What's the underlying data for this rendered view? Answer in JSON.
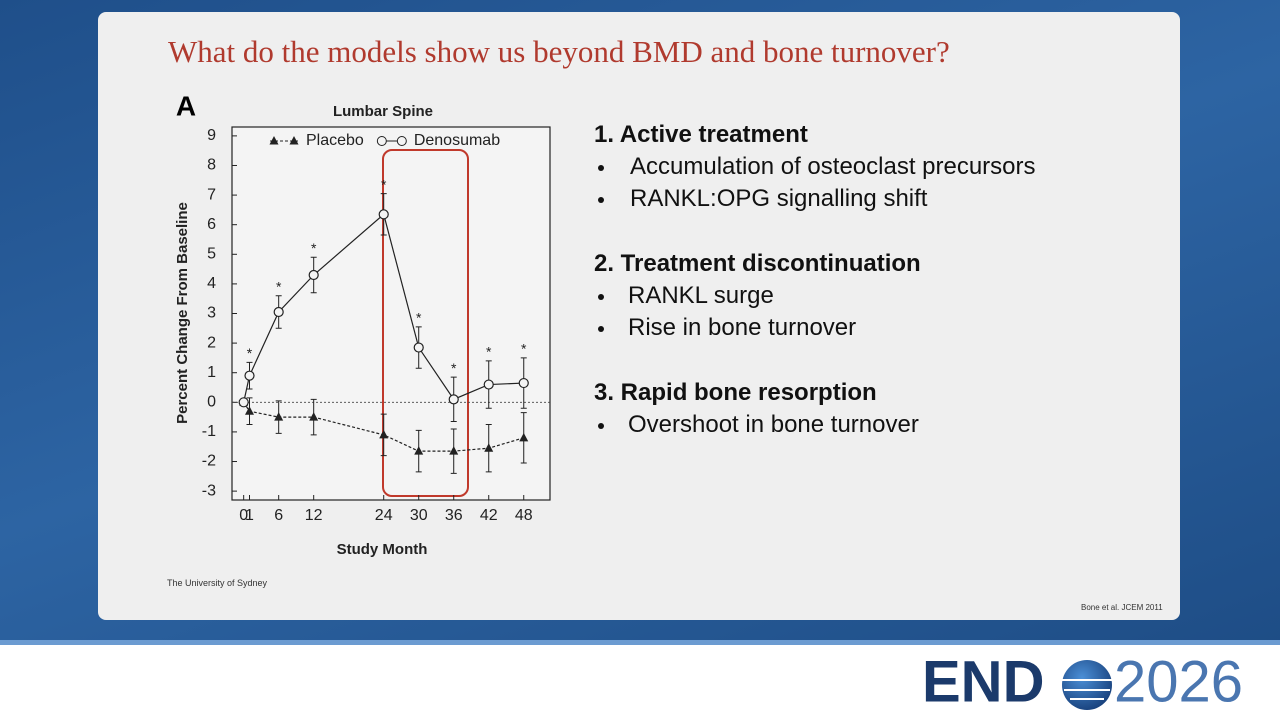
{
  "slide": {
    "title": "What do the models show us beyond BMD and bone turnover?",
    "sections": [
      {
        "heading": "1.  Active treatment",
        "bullets": [
          "Accumulation of osteoclast precursors",
          "RANKL:OPG signalling shift"
        ]
      },
      {
        "heading": "2. Treatment discontinuation",
        "bullets": [
          "RANKL surge",
          "Rise in bone turnover"
        ]
      },
      {
        "heading": "3. Rapid bone resorption",
        "bullets": [
          "Overshoot in bone turnover"
        ]
      }
    ],
    "source_left": "The University of Sydney",
    "source_right": "Bone et al. JCEM 2011",
    "logo_left": "END",
    "logo_right": "2026"
  },
  "chart_data": {
    "type": "line",
    "panel": "A",
    "title": "Lumbar Spine",
    "x_label": "Study Month",
    "y_label": "Percent Change From Baseline",
    "x": [
      0,
      1,
      6,
      12,
      24,
      30,
      36,
      42,
      48
    ],
    "series": [
      {
        "name": "Placebo",
        "color": "#222222",
        "marker": "triangle",
        "dash": true,
        "values": [
          0,
          -0.3,
          -0.5,
          -0.5,
          -1.1,
          -1.65,
          -1.65,
          -1.55,
          -1.2
        ],
        "errors": [
          0,
          0.45,
          0.55,
          0.6,
          0.7,
          0.7,
          0.75,
          0.8,
          0.85
        ]
      },
      {
        "name": "Denosumab",
        "color": "#222222",
        "marker": "circle",
        "dash": false,
        "values": [
          0,
          0.9,
          3.05,
          4.3,
          6.35,
          1.85,
          0.1,
          0.6,
          0.65
        ],
        "errors": [
          0,
          0.45,
          0.55,
          0.6,
          0.7,
          0.7,
          0.75,
          0.8,
          0.85
        ]
      }
    ],
    "significance": [
      null,
      "*",
      "*",
      "*",
      "*",
      "*",
      "*",
      "*",
      "*"
    ],
    "xlim": [
      -2,
      52.5
    ],
    "ylim": [
      -3.3,
      9.3
    ],
    "xticks": [
      0,
      1,
      6,
      12,
      24,
      30,
      36,
      42,
      48
    ],
    "yticks": [
      -3,
      -2,
      -1,
      0,
      1,
      2,
      3,
      4,
      5,
      6,
      7,
      8,
      9
    ],
    "reference_line": 0,
    "legend": "top"
  }
}
